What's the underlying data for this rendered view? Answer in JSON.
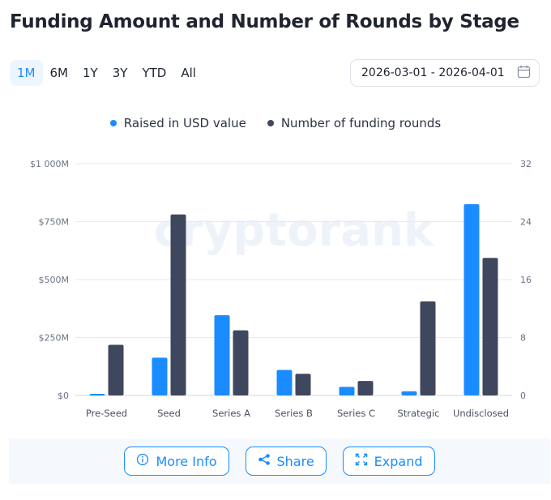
{
  "header": {
    "title": "Funding Amount and Number of Rounds by Stage"
  },
  "ranges": {
    "options": [
      "1M",
      "6M",
      "1Y",
      "3Y",
      "YTD",
      "All"
    ],
    "active": "1M"
  },
  "date_range": {
    "value": "2026-03-01 - 2026-04-01",
    "icon": "calendar-icon"
  },
  "watermark": "cryptorank",
  "colors": {
    "accent": "#1a8cff",
    "raised": "#1a8cff",
    "rounds": "#3f475e"
  },
  "chart_data": {
    "type": "bar",
    "categories": [
      "Pre-Seed",
      "Seed",
      "Series A",
      "Series B",
      "Series C",
      "Strategic",
      "Undisclosed"
    ],
    "series": [
      {
        "name": "Raised in USD value",
        "axis": "left",
        "unit": "M USD",
        "values": [
          5,
          163,
          346,
          110,
          37,
          18,
          825
        ]
      },
      {
        "name": "Number of funding rounds",
        "axis": "right",
        "values": [
          7,
          25,
          9,
          3,
          2,
          13,
          19
        ]
      }
    ],
    "y_left": {
      "ticks": [
        "$0",
        "$250M",
        "$500M",
        "$750M",
        "$1 000M"
      ],
      "ylim": [
        0,
        1000
      ]
    },
    "y_right": {
      "ticks": [
        "0",
        "8",
        "16",
        "24",
        "32"
      ],
      "ylim": [
        0,
        32
      ]
    },
    "grid": true,
    "legend_position": "top-center"
  },
  "footer": {
    "more_info": "More Info",
    "share": "Share",
    "expand": "Expand"
  }
}
